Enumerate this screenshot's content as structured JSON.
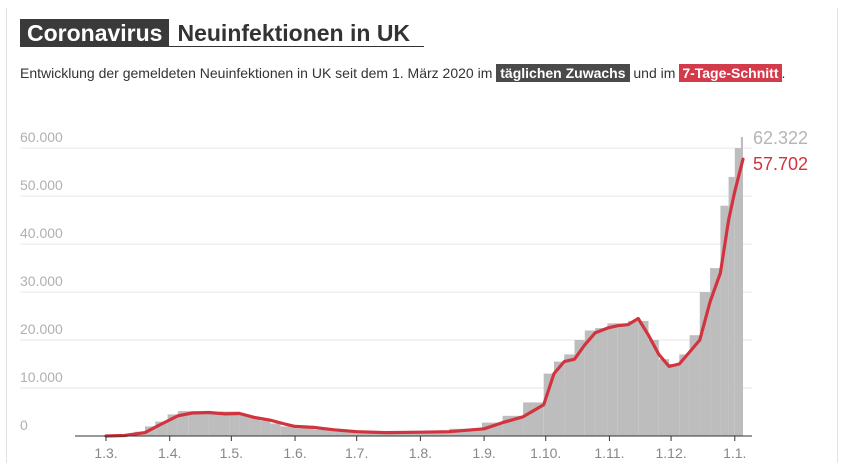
{
  "header": {
    "title_main": "Coronavirus",
    "title_sub": "Neuinfektionen in UK"
  },
  "subtitle": {
    "text_1": "Entwicklung der gemeldeten Neuinfektionen in UK seit dem 1. März 2020 im ",
    "highlight_daily": "täglichen Zuwachs",
    "text_2": " und im ",
    "highlight_avg": "7-Tage-Schnitt",
    "text_3": "."
  },
  "colors": {
    "bars": "#bdbdbd",
    "line": "#d1343f",
    "title_bg": "#3a3a3a"
  },
  "chart_data": {
    "type": "bar",
    "title": "Neuinfektionen in UK",
    "x_start": "2020-03-01",
    "x_end": "2021-01-05",
    "x_ticks": [
      "1.3.",
      "1.4.",
      "1.5.",
      "1.6.",
      "1.7.",
      "1.8.",
      "1.9.",
      "1.10.",
      "1.11.",
      "1.12.",
      "1.1."
    ],
    "y_ticks": [
      0,
      10000,
      20000,
      30000,
      40000,
      50000,
      60000
    ],
    "y_tick_labels": [
      "0",
      "10.000",
      "20.000",
      "30.000",
      "40.000",
      "50.000",
      "60.000"
    ],
    "ylim": [
      0,
      62322
    ],
    "grid": "horizontal",
    "series": [
      {
        "type": "bar",
        "points": [
          [
            "2020-03-01",
            0
          ],
          [
            "2020-03-10",
            50
          ],
          [
            "2020-03-15",
            300
          ],
          [
            "2020-03-20",
            900
          ],
          [
            "2020-03-25",
            2000
          ],
          [
            "2020-03-31",
            3000
          ],
          [
            "2020-04-05",
            4500
          ],
          [
            "2020-04-10",
            5200
          ],
          [
            "2020-04-15",
            5000
          ],
          [
            "2020-04-20",
            4900
          ],
          [
            "2020-04-25",
            5000
          ],
          [
            "2020-04-30",
            5100
          ],
          [
            "2020-05-05",
            4500
          ],
          [
            "2020-05-10",
            3800
          ],
          [
            "2020-05-15",
            3200
          ],
          [
            "2020-05-20",
            2600
          ],
          [
            "2020-05-25",
            2000
          ],
          [
            "2020-06-01",
            1600
          ],
          [
            "2020-06-10",
            1300
          ],
          [
            "2020-06-20",
            1000
          ],
          [
            "2020-07-01",
            700
          ],
          [
            "2020-07-15",
            600
          ],
          [
            "2020-08-01",
            800
          ],
          [
            "2020-08-15",
            1000
          ],
          [
            "2020-08-31",
            1500
          ],
          [
            "2020-09-10",
            2800
          ],
          [
            "2020-09-20",
            4200
          ],
          [
            "2020-09-30",
            7000
          ],
          [
            "2020-10-05",
            13000
          ],
          [
            "2020-10-10",
            15500
          ],
          [
            "2020-10-15",
            17000
          ],
          [
            "2020-10-20",
            20000
          ],
          [
            "2020-10-25",
            22000
          ],
          [
            "2020-10-31",
            22500
          ],
          [
            "2020-11-05",
            23500
          ],
          [
            "2020-11-10",
            23500
          ],
          [
            "2020-11-15",
            24000
          ],
          [
            "2020-11-20",
            20000
          ],
          [
            "2020-11-25",
            16000
          ],
          [
            "2020-11-30",
            14000
          ],
          [
            "2020-12-05",
            15000
          ],
          [
            "2020-12-10",
            17000
          ],
          [
            "2020-12-15",
            21000
          ],
          [
            "2020-12-20",
            30000
          ],
          [
            "2020-12-25",
            35000
          ],
          [
            "2020-12-29",
            48000
          ],
          [
            "2021-01-01",
            54000
          ],
          [
            "2021-01-04",
            60000
          ],
          [
            "2021-01-05",
            62322
          ]
        ]
      },
      {
        "type": "line",
        "points": [
          [
            "2020-03-01",
            0
          ],
          [
            "2020-03-10",
            100
          ],
          [
            "2020-03-20",
            700
          ],
          [
            "2020-03-28",
            2500
          ],
          [
            "2020-04-05",
            4200
          ],
          [
            "2020-04-12",
            4800
          ],
          [
            "2020-04-20",
            4900
          ],
          [
            "2020-04-28",
            4600
          ],
          [
            "2020-05-05",
            4700
          ],
          [
            "2020-05-12",
            3900
          ],
          [
            "2020-05-20",
            3300
          ],
          [
            "2020-05-27",
            2500
          ],
          [
            "2020-06-01",
            2000
          ],
          [
            "2020-06-10",
            1800
          ],
          [
            "2020-06-20",
            1300
          ],
          [
            "2020-07-01",
            900
          ],
          [
            "2020-07-15",
            700
          ],
          [
            "2020-08-01",
            800
          ],
          [
            "2020-08-15",
            900
          ],
          [
            "2020-09-01",
            1500
          ],
          [
            "2020-09-10",
            2800
          ],
          [
            "2020-09-20",
            4000
          ],
          [
            "2020-09-30",
            6500
          ],
          [
            "2020-10-05",
            13000
          ],
          [
            "2020-10-10",
            15500
          ],
          [
            "2020-10-15",
            16000
          ],
          [
            "2020-10-20",
            19000
          ],
          [
            "2020-10-25",
            21500
          ],
          [
            "2020-10-31",
            22500
          ],
          [
            "2020-11-05",
            23000
          ],
          [
            "2020-11-10",
            23200
          ],
          [
            "2020-11-15",
            24500
          ],
          [
            "2020-11-20",
            21000
          ],
          [
            "2020-11-25",
            17000
          ],
          [
            "2020-11-30",
            14500
          ],
          [
            "2020-12-05",
            15000
          ],
          [
            "2020-12-10",
            17500
          ],
          [
            "2020-12-15",
            20000
          ],
          [
            "2020-12-20",
            28000
          ],
          [
            "2020-12-25",
            34000
          ],
          [
            "2020-12-29",
            45000
          ],
          [
            "2021-01-01",
            51000
          ],
          [
            "2021-01-04",
            56000
          ],
          [
            "2021-01-05",
            57702
          ]
        ]
      }
    ],
    "end_labels": {
      "bars": "62.322",
      "line": "57.702"
    }
  }
}
